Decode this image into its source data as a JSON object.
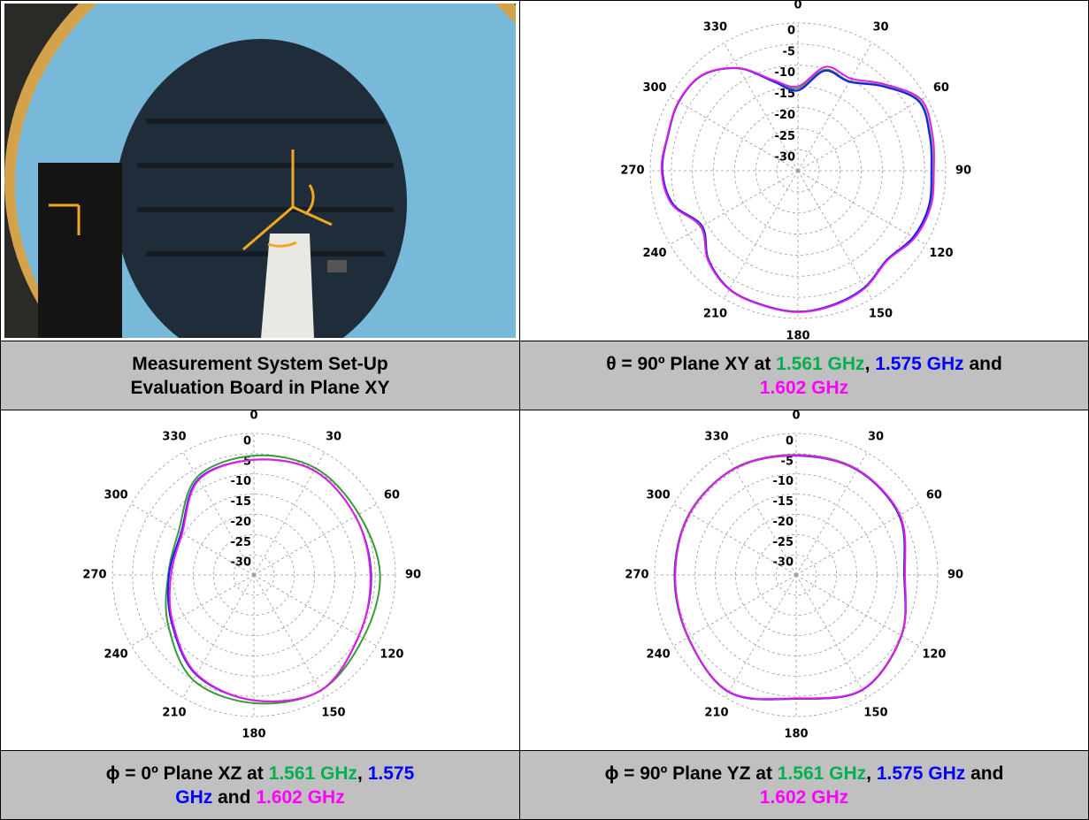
{
  "table": {
    "captions": [
      {
        "lines": [
          [
            {
              "text": "Measurement System Set-Up"
            }
          ],
          [
            {
              "text": "Evaluation Board in Plane XY"
            }
          ]
        ]
      },
      {
        "lines": [
          [
            {
              "text": "θ = 90º Plane XY at "
            },
            {
              "text": "1.561 GHz",
              "color": "#00b050"
            },
            {
              "text": ", "
            },
            {
              "text": "1.575 GHz",
              "color": "#0000ff"
            },
            {
              "text": " and"
            }
          ],
          [
            {
              "text": "1.602 GHz",
              "color": "#ff00ff"
            }
          ]
        ]
      },
      {
        "lines": [
          [
            {
              "text": "ϕ = 0º Plane XZ at "
            },
            {
              "text": "1.561 GHz",
              "color": "#00b050"
            },
            {
              "text": ", "
            },
            {
              "text": "1.575",
              "color": "#0000ff"
            }
          ],
          [
            {
              "text": "GHz",
              "color": "#0000ff"
            },
            {
              "text": " and "
            },
            {
              "text": "1.602 GHz",
              "color": "#ff00ff"
            }
          ]
        ]
      },
      {
        "lines": [
          [
            {
              "text": "ϕ = 90º Plane YZ at "
            },
            {
              "text": "1.561 GHz",
              "color": "#00b050"
            },
            {
              "text": ", "
            },
            {
              "text": "1.575 GHz",
              "color": "#0000ff"
            },
            {
              "text": " and"
            }
          ],
          [
            {
              "text": "1.602 GHz",
              "color": "#ff00ff"
            }
          ]
        ]
      }
    ]
  },
  "chart_data": [
    {
      "type": "polar",
      "rlim": [
        -35,
        0
      ],
      "rticks": [
        0,
        -5,
        -10,
        -15,
        -20,
        -25,
        -30
      ],
      "thetaticks": [
        0,
        30,
        60,
        90,
        120,
        150,
        180,
        210,
        240,
        270,
        300,
        330
      ],
      "grid": true,
      "x": [
        0,
        15,
        30,
        45,
        60,
        75,
        90,
        105,
        120,
        135,
        150,
        165,
        180,
        195,
        210,
        225,
        240,
        255,
        270,
        285,
        300,
        315,
        330,
        345
      ],
      "series": [
        {
          "color": "#3a9a3a",
          "values": [
            -15.5,
            -10.2,
            -10.5,
            -6.5,
            -1.8,
            -2.5,
            -3.2,
            -2.7,
            -3.3,
            -5,
            -3.1,
            -2.1,
            -1.6,
            -2.1,
            -2.6,
            -5,
            -8.4,
            -4.2,
            -2.8,
            -3.1,
            -2.4,
            -3,
            -7,
            -13
          ]
        },
        {
          "color": "#1a1aff",
          "values": [
            -16,
            -10.5,
            -10.7,
            -6.7,
            -2,
            -2.7,
            -3.4,
            -2.9,
            -3.5,
            -5.2,
            -3.2,
            -2.2,
            -1.6,
            -2.1,
            -2.6,
            -5.1,
            -8.8,
            -4.4,
            -2.9,
            -3.1,
            -2.4,
            -3,
            -7,
            -13.2
          ]
        },
        {
          "color": "#e020e0",
          "values": [
            -15,
            -9.5,
            -9.8,
            -6,
            -1.3,
            -2,
            -2.8,
            -2.4,
            -3.1,
            -5,
            -3,
            -2,
            -1.5,
            -2,
            -2.5,
            -4.9,
            -8.5,
            -4.1,
            -2.7,
            -3,
            -2.3,
            -2.9,
            -6.9,
            -12.8
          ]
        }
      ]
    },
    {
      "type": "polar",
      "rlim": [
        -35,
        0
      ],
      "rticks": [
        0,
        -5,
        -10,
        -15,
        -20,
        -25,
        -30
      ],
      "thetaticks": [
        0,
        30,
        60,
        90,
        120,
        150,
        180,
        210,
        240,
        270,
        300,
        330
      ],
      "grid": true,
      "x": [
        0,
        30,
        60,
        90,
        120,
        150,
        180,
        210,
        240,
        270,
        300,
        330
      ],
      "series": [
        {
          "color": "#3a9a3a",
          "values": [
            -5.5,
            -4.5,
            -5,
            -3.8,
            -3.8,
            -2,
            -3.3,
            -5,
            -10.5,
            -13.8,
            -13.5,
            -7
          ]
        },
        {
          "color": "#1a1aff",
          "values": [
            -6.5,
            -5.2,
            -6,
            -6,
            -5,
            -2,
            -4,
            -6.5,
            -11.5,
            -14,
            -14.2,
            -7.6
          ]
        },
        {
          "color": "#e020e0",
          "values": [
            -6.5,
            -5.2,
            -6,
            -6.2,
            -5,
            -2,
            -4,
            -6.7,
            -11.8,
            -14.5,
            -14.5,
            -7.8
          ]
        }
      ]
    },
    {
      "type": "polar",
      "rlim": [
        -35,
        0
      ],
      "rticks": [
        0,
        -5,
        -10,
        -15,
        -20,
        -25,
        -30
      ],
      "thetaticks": [
        0,
        30,
        60,
        90,
        120,
        150,
        180,
        210,
        240,
        270,
        300,
        330
      ],
      "grid": true,
      "x": [
        0,
        30,
        60,
        90,
        120,
        150,
        180,
        210,
        240,
        270,
        300,
        330
      ],
      "series": [
        {
          "color": "#3a9a3a",
          "values": [
            -5.3,
            -4.8,
            -5.5,
            -8.2,
            -4.9,
            -2.2,
            -4.4,
            -1.6,
            -4.1,
            -4.9,
            -4.5,
            -4.5
          ]
        },
        {
          "color": "#1a1aff",
          "values": [
            -5.5,
            -5,
            -5.6,
            -8.3,
            -5,
            -2.2,
            -4.4,
            -1.6,
            -4.2,
            -5,
            -4.6,
            -4.6
          ]
        },
        {
          "color": "#e020e0",
          "values": [
            -5.4,
            -4.9,
            -5.4,
            -8.1,
            -5,
            -2.3,
            -4.5,
            -1.7,
            -4.2,
            -5.1,
            -4.6,
            -4.6
          ]
        }
      ]
    }
  ]
}
